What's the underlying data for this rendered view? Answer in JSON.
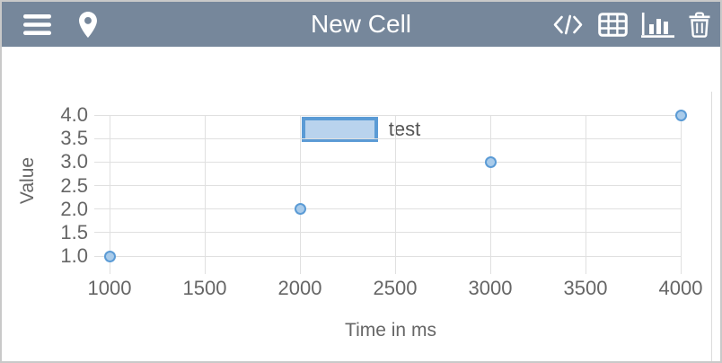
{
  "colors": {
    "header_bg": "#76879B",
    "title_text": "#FFFFFF",
    "icon": "#FFFFFF",
    "card_border": "#C9C9C9",
    "grid_line": "#E0E0E0",
    "tick_text": "#666666",
    "axis_label_text": "#666666",
    "legend_text": "#555555",
    "legend_fill": "#B9D3ED",
    "legend_border": "#5B9BD5",
    "point_fill": "#A9CBEA",
    "point_stroke": "#5B9BD5",
    "divider": "#DCDCDC"
  },
  "header": {
    "title": "New Cell",
    "left_icons": [
      "menu-icon",
      "location-pin-icon"
    ],
    "right_icons": [
      "code-icon",
      "table-icon",
      "bar-chart-icon",
      "trash-icon"
    ]
  },
  "legend": {
    "label": "test"
  },
  "chart_data": {
    "type": "scatter",
    "title": "",
    "xlabel": "Time in ms",
    "ylabel": "Value",
    "series": [
      {
        "name": "test",
        "points": [
          [
            1000,
            1.0
          ],
          [
            2000,
            2.0
          ],
          [
            3000,
            3.0
          ],
          [
            4000,
            4.0
          ]
        ]
      }
    ],
    "x_ticks": [
      1000,
      1500,
      2000,
      2500,
      3000,
      3500,
      4000
    ],
    "x_tick_labels": [
      "1000",
      "1500",
      "2000",
      "2500",
      "3000",
      "3500",
      "4000"
    ],
    "y_ticks": [
      1.0,
      1.5,
      2.0,
      2.5,
      3.0,
      3.5,
      4.0
    ],
    "y_tick_labels": [
      "1.0",
      "1.5",
      "2.0",
      "2.5",
      "3.0",
      "3.5",
      "4.0"
    ],
    "xlim": [
      1000,
      4000
    ],
    "ylim": [
      1.0,
      4.0
    ],
    "grid": true,
    "legend_position": "top-center"
  }
}
